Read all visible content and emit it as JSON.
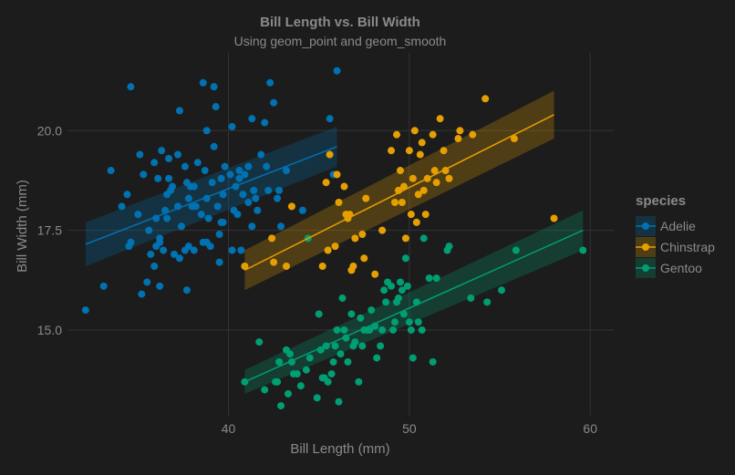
{
  "chart_data": {
    "type": "scatter",
    "title": "Bill Length vs. Bill Width",
    "subtitle": "Using geom_point and geom_smooth",
    "xlabel": "Bill Length (mm)",
    "ylabel": "Bill Width (mm)",
    "xlim": [
      31.1,
      61.3
    ],
    "ylim": [
      12.85,
      21.95
    ],
    "x_ticks": [
      40,
      50,
      60
    ],
    "y_ticks": [
      15.0,
      17.5,
      20.0
    ],
    "x_tick_labels": [
      "40",
      "50",
      "60"
    ],
    "y_tick_labels": [
      "15.0",
      "17.5",
      "20.0"
    ],
    "grid": true,
    "legend": {
      "title": "species",
      "position": "right"
    },
    "series": [
      {
        "name": "Adelie",
        "color": "#0072B2",
        "fit": {
          "x": [
            32.1,
            46.0
          ],
          "y": [
            17.15,
            19.6
          ],
          "se_upper": [
            17.7,
            20.1
          ],
          "se_lower": [
            16.6,
            19.1
          ]
        },
        "points": [
          [
            32.1,
            15.5
          ],
          [
            33.1,
            16.1
          ],
          [
            33.5,
            19.0
          ],
          [
            34.1,
            18.1
          ],
          [
            34.4,
            18.4
          ],
          [
            34.5,
            17.1
          ],
          [
            34.6,
            21.1
          ],
          [
            34.6,
            17.2
          ],
          [
            35.0,
            17.9
          ],
          [
            35.1,
            19.4
          ],
          [
            35.2,
            15.9
          ],
          [
            35.3,
            18.9
          ],
          [
            35.5,
            16.2
          ],
          [
            35.6,
            17.5
          ],
          [
            35.7,
            16.9
          ],
          [
            35.9,
            16.6
          ],
          [
            35.9,
            19.2
          ],
          [
            36.0,
            17.1
          ],
          [
            36.0,
            17.8
          ],
          [
            36.2,
            16.1
          ],
          [
            36.2,
            17.2
          ],
          [
            36.2,
            17.3
          ],
          [
            36.3,
            19.5
          ],
          [
            36.4,
            17.0
          ],
          [
            36.5,
            18.0
          ],
          [
            36.6,
            17.8
          ],
          [
            36.7,
            18.8
          ],
          [
            36.7,
            19.3
          ],
          [
            36.8,
            18.5
          ],
          [
            36.9,
            18.6
          ],
          [
            37.0,
            16.9
          ],
          [
            37.2,
            18.1
          ],
          [
            37.2,
            19.4
          ],
          [
            37.3,
            16.8
          ],
          [
            37.3,
            20.5
          ],
          [
            37.6,
            17.0
          ],
          [
            37.6,
            19.1
          ],
          [
            37.7,
            18.7
          ],
          [
            37.7,
            16.0
          ],
          [
            37.8,
            17.1
          ],
          [
            37.8,
            18.3
          ],
          [
            37.9,
            18.6
          ],
          [
            38.1,
            17.0
          ],
          [
            38.1,
            18.6
          ],
          [
            38.2,
            18.1
          ],
          [
            38.3,
            19.2
          ],
          [
            38.5,
            17.9
          ],
          [
            38.6,
            17.2
          ],
          [
            38.6,
            21.2
          ],
          [
            38.7,
            19.0
          ],
          [
            38.8,
            17.2
          ],
          [
            38.8,
            20.0
          ],
          [
            38.9,
            17.8
          ],
          [
            39.0,
            17.1
          ],
          [
            39.1,
            18.7
          ],
          [
            39.2,
            19.6
          ],
          [
            39.2,
            21.1
          ],
          [
            39.3,
            20.6
          ],
          [
            39.5,
            16.7
          ],
          [
            39.5,
            17.4
          ],
          [
            39.6,
            17.7
          ],
          [
            39.6,
            18.8
          ],
          [
            39.7,
            18.4
          ],
          [
            39.7,
            17.7
          ],
          [
            39.8,
            19.1
          ],
          [
            40.2,
            17.0
          ],
          [
            40.2,
            20.1
          ],
          [
            40.3,
            18.0
          ],
          [
            40.5,
            17.9
          ],
          [
            40.6,
            18.8
          ],
          [
            40.6,
            19.0
          ],
          [
            40.7,
            17.0
          ],
          [
            40.8,
            18.4
          ],
          [
            40.9,
            16.6
          ],
          [
            40.9,
            18.9
          ],
          [
            41.1,
            18.2
          ],
          [
            41.1,
            19.1
          ],
          [
            41.3,
            17.6
          ],
          [
            41.3,
            20.3
          ],
          [
            41.4,
            18.5
          ],
          [
            41.5,
            18.3
          ],
          [
            41.6,
            18.0
          ],
          [
            41.8,
            19.4
          ],
          [
            42.0,
            20.2
          ],
          [
            42.1,
            19.1
          ],
          [
            42.2,
            18.5
          ],
          [
            42.3,
            21.2
          ],
          [
            42.5,
            20.7
          ],
          [
            42.7,
            18.3
          ],
          [
            42.8,
            18.5
          ],
          [
            42.9,
            17.6
          ],
          [
            43.2,
            19.0
          ],
          [
            44.1,
            18.0
          ],
          [
            45.6,
            20.3
          ],
          [
            45.8,
            18.9
          ],
          [
            46.0,
            21.5
          ],
          [
            36.1,
            18.8
          ],
          [
            36.6,
            18.4
          ],
          [
            37.4,
            17.6
          ],
          [
            38.0,
            18.1
          ],
          [
            38.8,
            18.3
          ],
          [
            39.4,
            18.1
          ],
          [
            40.1,
            18.9
          ],
          [
            40.4,
            18.6
          ]
        ]
      },
      {
        "name": "Chinstrap",
        "color": "#E69F00",
        "fit": {
          "x": [
            40.9,
            58.0
          ],
          "y": [
            16.5,
            20.4
          ],
          "se_upper": [
            17.0,
            21.0
          ],
          "se_lower": [
            16.0,
            19.8
          ]
        },
        "points": [
          [
            40.9,
            16.6
          ],
          [
            42.4,
            17.3
          ],
          [
            42.5,
            16.7
          ],
          [
            43.2,
            16.6
          ],
          [
            43.5,
            18.1
          ],
          [
            45.2,
            16.6
          ],
          [
            45.4,
            18.7
          ],
          [
            45.5,
            17.0
          ],
          [
            45.6,
            19.4
          ],
          [
            45.9,
            17.1
          ],
          [
            46.0,
            18.9
          ],
          [
            46.1,
            18.2
          ],
          [
            46.4,
            18.6
          ],
          [
            46.5,
            17.9
          ],
          [
            46.6,
            17.8
          ],
          [
            46.7,
            17.9
          ],
          [
            46.8,
            16.5
          ],
          [
            46.9,
            16.6
          ],
          [
            47.0,
            17.3
          ],
          [
            47.5,
            16.8
          ],
          [
            47.6,
            18.3
          ],
          [
            48.1,
            16.4
          ],
          [
            48.5,
            17.5
          ],
          [
            49.0,
            19.5
          ],
          [
            49.2,
            18.2
          ],
          [
            49.3,
            19.9
          ],
          [
            49.5,
            19.0
          ],
          [
            49.6,
            18.2
          ],
          [
            49.7,
            18.6
          ],
          [
            50.0,
            19.5
          ],
          [
            50.1,
            17.9
          ],
          [
            50.2,
            18.8
          ],
          [
            50.3,
            20.0
          ],
          [
            50.5,
            18.4
          ],
          [
            50.6,
            19.4
          ],
          [
            50.7,
            19.7
          ],
          [
            50.8,
            18.5
          ],
          [
            50.9,
            17.9
          ],
          [
            51.0,
            18.8
          ],
          [
            51.3,
            19.9
          ],
          [
            51.4,
            19.0
          ],
          [
            51.5,
            18.7
          ],
          [
            51.7,
            20.3
          ],
          [
            51.9,
            19.5
          ],
          [
            52.0,
            19.0
          ],
          [
            52.2,
            18.8
          ],
          [
            52.7,
            19.8
          ],
          [
            52.8,
            20.0
          ],
          [
            53.5,
            19.9
          ],
          [
            54.2,
            20.8
          ],
          [
            55.8,
            19.8
          ],
          [
            58.0,
            17.8
          ],
          [
            49.8,
            17.3
          ],
          [
            50.4,
            17.7
          ],
          [
            49.4,
            18.5
          ],
          [
            47.4,
            17.4
          ]
        ]
      },
      {
        "name": "Gentoo",
        "color": "#009E73",
        "fit": {
          "x": [
            40.9,
            59.6
          ],
          "y": [
            13.7,
            17.5
          ],
          "se_upper": [
            14.0,
            18.0
          ],
          "se_lower": [
            13.4,
            17.0
          ]
        },
        "points": [
          [
            40.9,
            13.7
          ],
          [
            41.7,
            14.7
          ],
          [
            42.0,
            13.5
          ],
          [
            42.6,
            13.7
          ],
          [
            42.7,
            13.7
          ],
          [
            42.8,
            14.2
          ],
          [
            42.9,
            13.1
          ],
          [
            43.2,
            14.5
          ],
          [
            43.3,
            13.4
          ],
          [
            43.4,
            14.4
          ],
          [
            43.5,
            14.2
          ],
          [
            43.6,
            13.9
          ],
          [
            43.8,
            13.9
          ],
          [
            44.0,
            13.6
          ],
          [
            44.4,
            17.3
          ],
          [
            44.5,
            14.3
          ],
          [
            44.9,
            13.3
          ],
          [
            45.0,
            15.4
          ],
          [
            45.1,
            14.5
          ],
          [
            45.2,
            13.8
          ],
          [
            45.3,
            13.8
          ],
          [
            45.4,
            14.6
          ],
          [
            45.5,
            13.7
          ],
          [
            45.7,
            13.9
          ],
          [
            45.8,
            14.2
          ],
          [
            46.1,
            13.2
          ],
          [
            46.2,
            14.4
          ],
          [
            46.3,
            15.8
          ],
          [
            46.4,
            15.0
          ],
          [
            46.5,
            14.8
          ],
          [
            46.6,
            14.2
          ],
          [
            46.8,
            15.4
          ],
          [
            46.9,
            14.6
          ],
          [
            47.2,
            13.7
          ],
          [
            47.3,
            15.3
          ],
          [
            47.4,
            14.6
          ],
          [
            47.5,
            15.0
          ],
          [
            47.7,
            15.0
          ],
          [
            47.8,
            15.0
          ],
          [
            48.1,
            15.1
          ],
          [
            48.2,
            14.3
          ],
          [
            48.4,
            14.6
          ],
          [
            48.5,
            15.0
          ],
          [
            48.7,
            15.7
          ],
          [
            48.8,
            16.2
          ],
          [
            49.0,
            16.1
          ],
          [
            49.1,
            15.0
          ],
          [
            49.2,
            15.2
          ],
          [
            49.3,
            15.7
          ],
          [
            49.4,
            15.8
          ],
          [
            49.5,
            16.2
          ],
          [
            49.6,
            16.0
          ],
          [
            49.8,
            16.8
          ],
          [
            49.9,
            16.1
          ],
          [
            50.0,
            15.2
          ],
          [
            50.1,
            15.0
          ],
          [
            50.2,
            14.3
          ],
          [
            50.4,
            15.7
          ],
          [
            50.5,
            15.2
          ],
          [
            50.7,
            15.0
          ],
          [
            50.8,
            17.3
          ],
          [
            51.1,
            16.3
          ],
          [
            51.3,
            14.2
          ],
          [
            51.5,
            16.3
          ],
          [
            52.1,
            17.0
          ],
          [
            52.2,
            17.1
          ],
          [
            53.4,
            15.8
          ],
          [
            54.3,
            15.7
          ],
          [
            55.1,
            16.0
          ],
          [
            55.9,
            17.0
          ],
          [
            59.6,
            17.0
          ],
          [
            46.0,
            15.0
          ],
          [
            47.0,
            14.7
          ],
          [
            48.6,
            16.0
          ],
          [
            49.7,
            15.4
          ],
          [
            45.9,
            14.6
          ],
          [
            44.3,
            14.0
          ],
          [
            47.9,
            15.5
          ]
        ]
      }
    ]
  }
}
